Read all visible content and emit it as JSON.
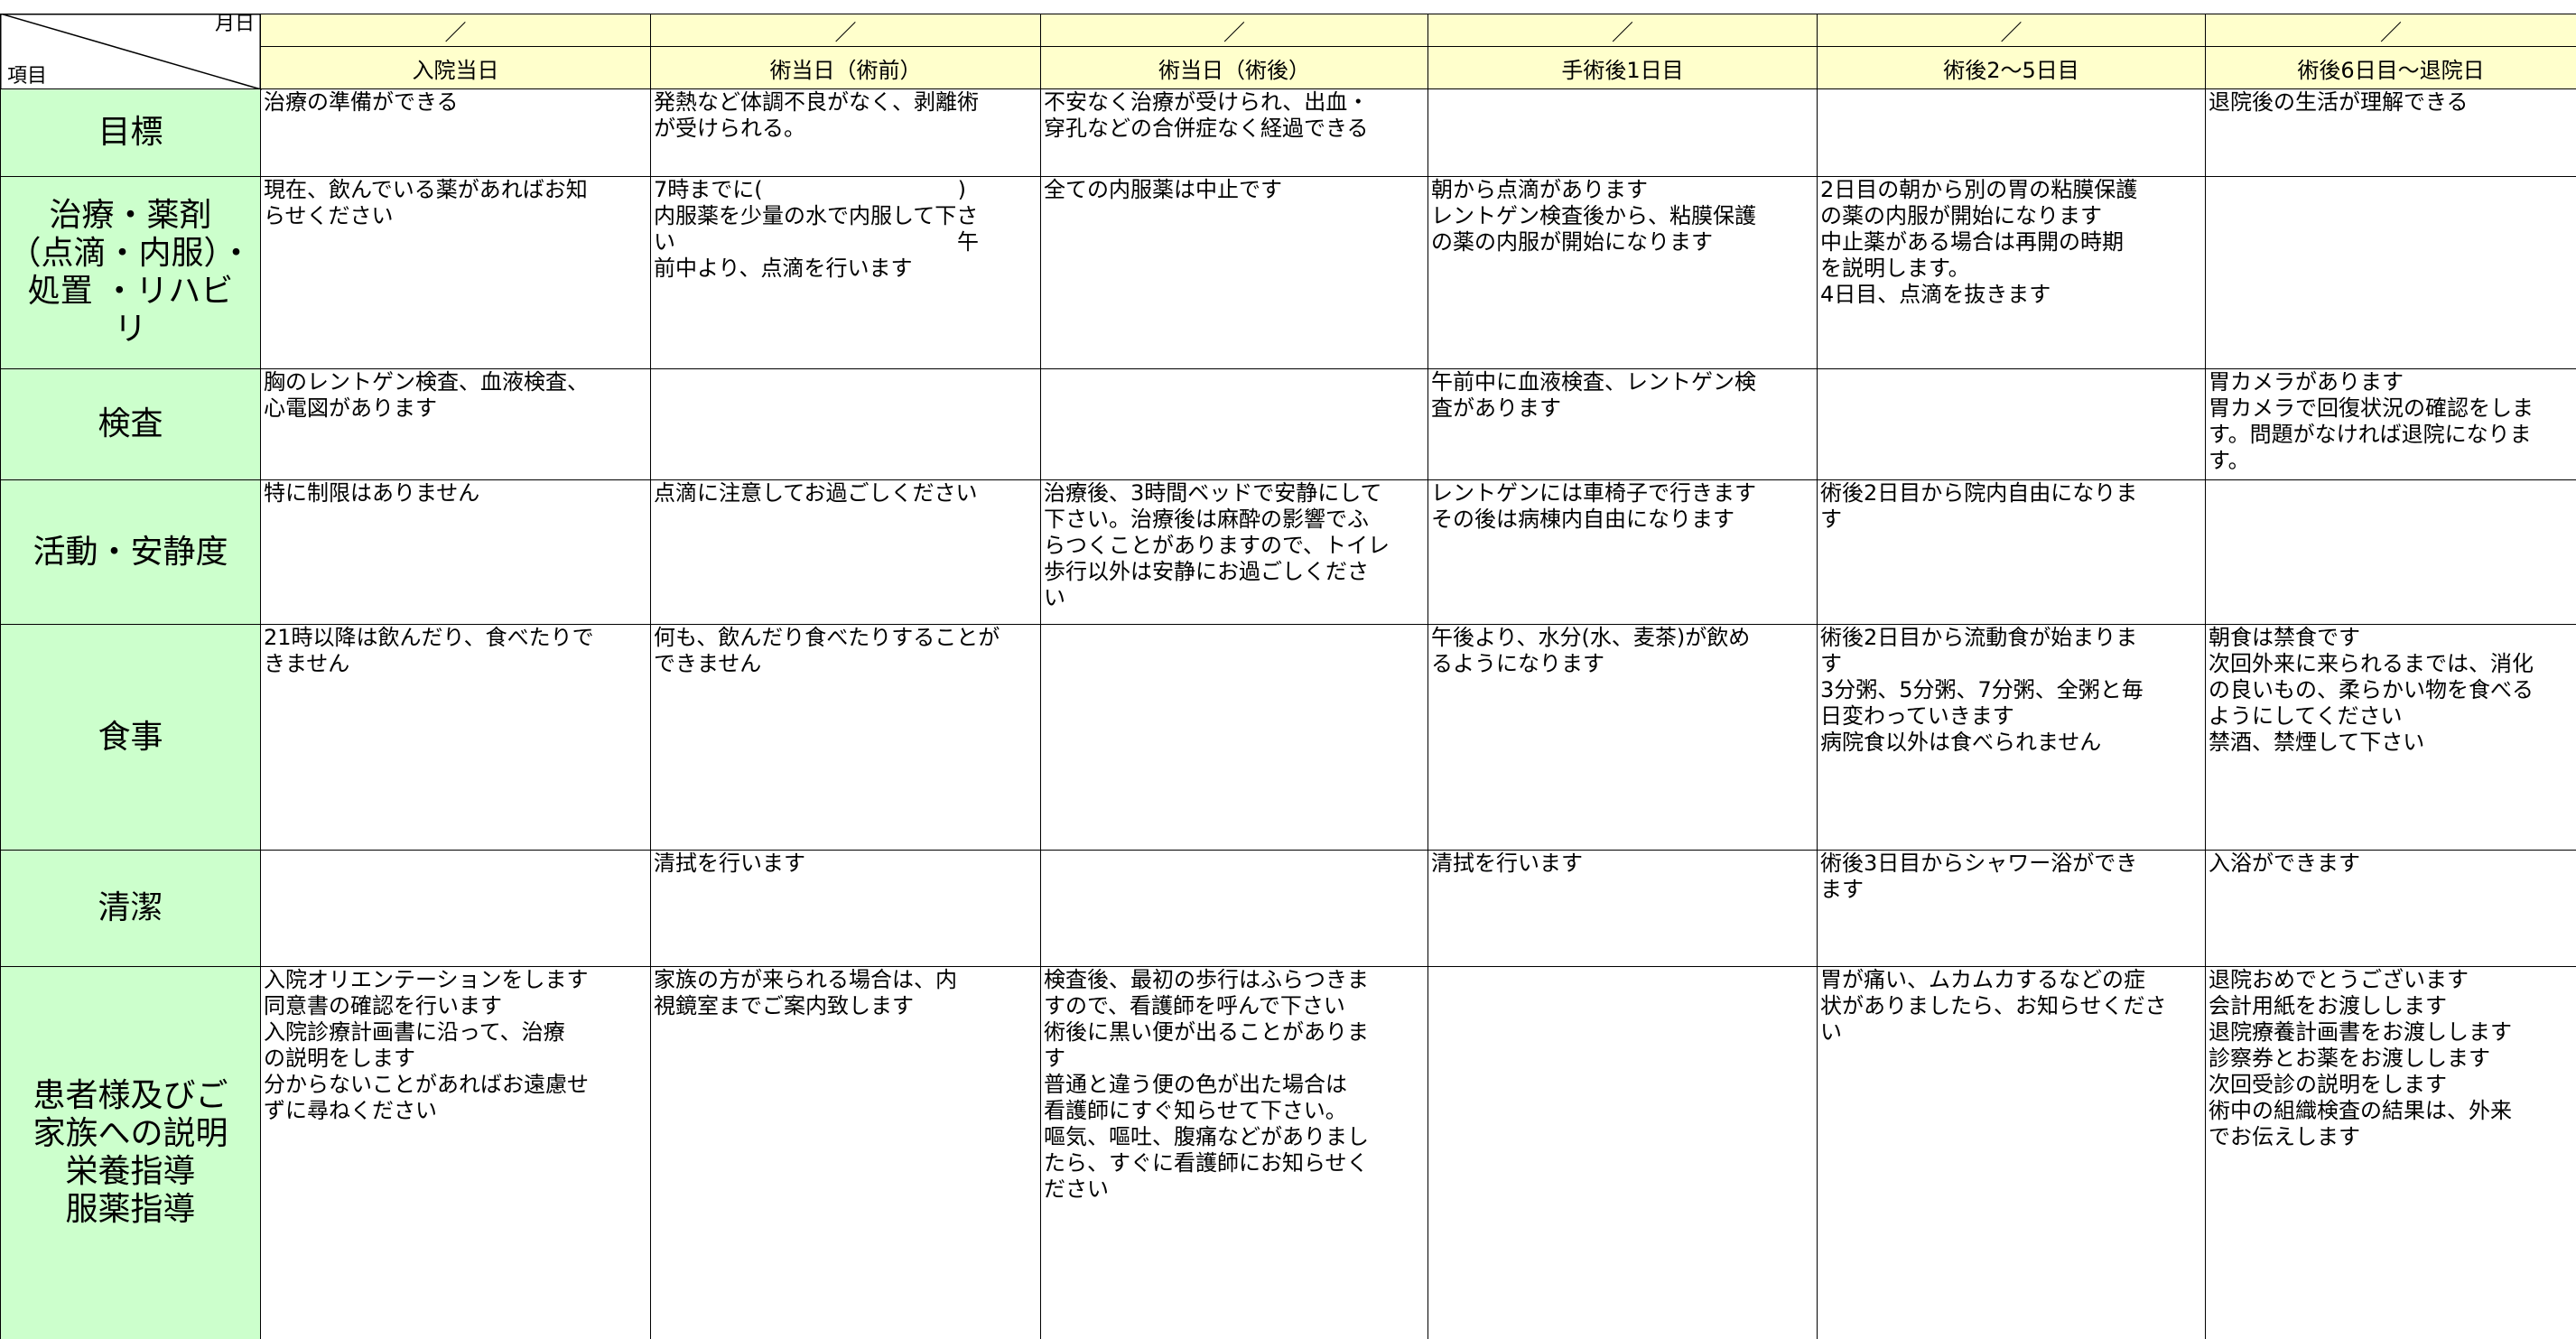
{
  "header": {
    "corner_top": "月日",
    "corner_bottom": "項目",
    "dates": [
      "／",
      "／",
      "／",
      "／",
      "／",
      "／"
    ],
    "columns": [
      "入院当日",
      "術当日（術前）",
      "術当日（術後）",
      "手術後1日目",
      "術後2～5日目",
      "術後6日目～退院日"
    ]
  },
  "rows": [
    {
      "label": "目標",
      "cells": [
        "治療の準備ができる",
        "発熱など体調不良がなく、剥離術\nが受けられる。",
        "不安なく治療が受けられ、出血・\n穿孔などの合併症なく経過できる",
        null,
        null,
        "退院後の生活が理解できる"
      ]
    },
    {
      "label": "治療・薬剤\n（点滴・内服）・\n処置 ・リハビ\nリ",
      "cells": [
        "現在、飲んでいる薬があればお知\nらせください",
        "7時までに(　　　　　　　　　)\n内服薬を少量の水で内服して下さ\nい　　　　　　　　　　　　　午\n前中より、点滴を行います",
        "全ての内服薬は中止です",
        "朝から点滴があります\nレントゲン検査後から、粘膜保護\nの薬の内服が開始になります",
        "2日目の朝から別の胃の粘膜保護\nの薬の内服が開始になります\n中止薬がある場合は再開の時期\nを説明します。\n4日目、点滴を抜きます",
        null
      ]
    },
    {
      "label": "検査",
      "cells": [
        "胸のレントゲン検査、血液検査、\n心電図があります",
        null,
        null,
        "午前中に血液検査、レントゲン検\n査があります",
        null,
        "胃カメラがあります\n胃カメラで回復状況の確認をしま\nす。問題がなければ退院になりま\nす。"
      ]
    },
    {
      "label": "活動・安静度",
      "cells": [
        "特に制限はありません",
        "点滴に注意してお過ごしください",
        "治療後、3時間ベッドで安静にして\n下さい。治療後は麻酔の影響でふ\nらつくことがありますので、トイレ\n歩行以外は安静にお過ごしくださ\nい",
        "レントゲンには車椅子で行きます\nその後は病棟内自由になります",
        "術後2日目から院内自由になりま\nす",
        null
      ]
    },
    {
      "label": "食事",
      "cells": [
        "21時以降は飲んだり、食べたりで\nきません",
        "何も、飲んだり食べたりすることが\nできません",
        null,
        "午後より、水分(水、麦茶)が飲め\nるようになります",
        "術後2日目から流動食が始まりま\nす\n3分粥、5分粥、7分粥、全粥と毎\n日変わっていきます\n病院食以外は食べられません",
        "朝食は禁食です\n次回外来に来られるまでは、消化\nの良いもの、柔らかい物を食べる\nようにしてください\n禁酒、禁煙して下さい"
      ]
    },
    {
      "label": "清潔",
      "cells": [
        null,
        "清拭を行います",
        null,
        "清拭を行います",
        "術後3日目からシャワー浴ができ\nます",
        "入浴ができます"
      ]
    },
    {
      "label": "患者様及びご\n家族への説明\n栄養指導\n服薬指導",
      "cells": [
        "入院オリエンテーションをします\n同意書の確認を行います\n入院診療計画書に沿って、治療\nの説明をします\n分からないことがあればお遠慮せ\nずに尋ねください",
        "家族の方が来られる場合は、内\n視鏡室までご案内致します",
        "検査後、最初の歩行はふらつきま\nすので、看護師を呼んで下さい\n術後に黒い便が出ることがありま\nす\n普通と違う便の色が出た場合は\n看護師にすぐ知らせて下さい。\n嘔気、嘔吐、腹痛などがありまし\nたら、すぐに看護師にお知らせく\nださい",
        null,
        "胃が痛い、ムカムカするなどの症\n状がありましたら、お知らせくださ\nい",
        "退院おめでとうございます\n会計用紙をお渡しします\n退院療養計画書をお渡しします\n診察券とお薬をお渡しします\n次回受診の説明をします\n術中の組織検査の結果は、外来\nでお伝えします"
      ]
    }
  ]
}
